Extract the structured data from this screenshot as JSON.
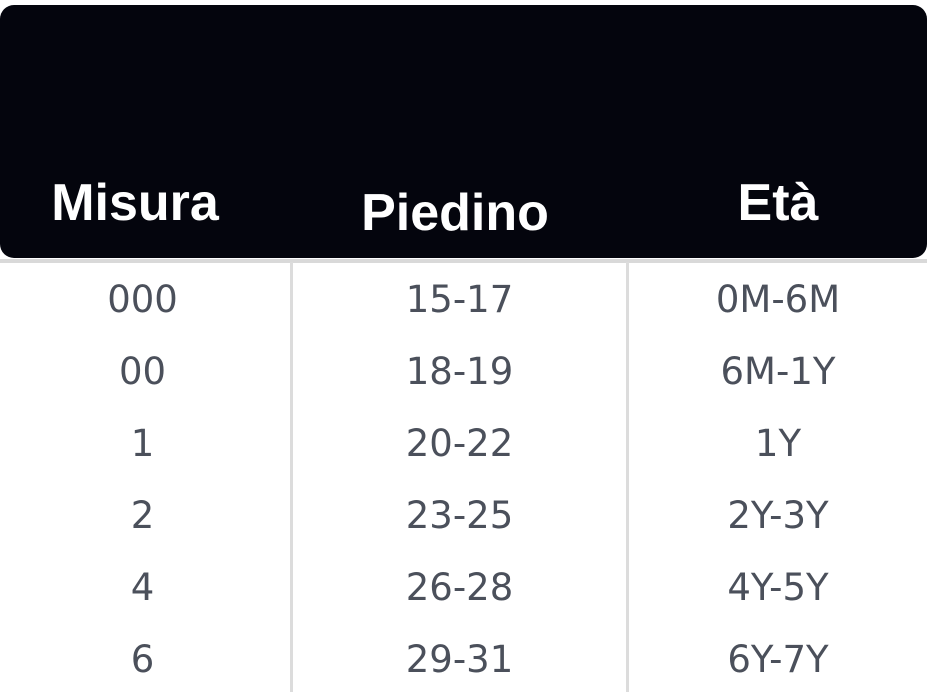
{
  "headers": [
    "Misura",
    "Piedino",
    "Età"
  ],
  "rows": [
    [
      "000",
      "15-17",
      "0M-6M"
    ],
    [
      "00",
      "18-19",
      "6M-1Y"
    ],
    [
      "1",
      "20-22",
      "1Y"
    ],
    [
      "2",
      "23-25",
      "2Y-3Y"
    ],
    [
      "4",
      "26-28",
      "4Y-5Y"
    ],
    [
      "6",
      "29-31",
      "6Y-7Y"
    ]
  ]
}
